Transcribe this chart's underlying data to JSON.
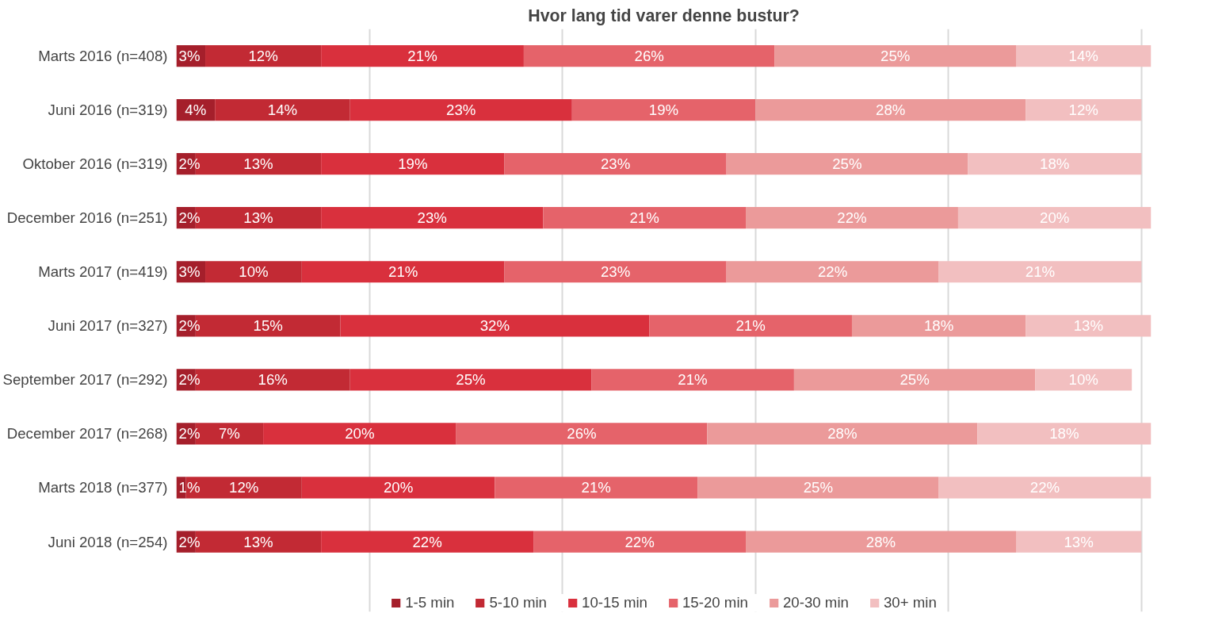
{
  "chart_data": {
    "type": "bar",
    "orientation": "horizontal",
    "stacked": true,
    "title": "Hvor lang tid varer denne bustur?",
    "categories": [
      "Marts 2016 (n=408)",
      "Juni 2016 (n=319)",
      "Oktober 2016 (n=319)",
      "December 2016 (n=251)",
      "Marts 2017 (n=419)",
      "Juni 2017 (n=327)",
      "September 2017 (n=292)",
      "December 2017 (n=268)",
      "Marts 2018 (n=377)",
      "Juni 2018 (n=254)"
    ],
    "series": [
      {
        "name": "1-5 min",
        "color": "#a51f2b",
        "values": [
          3,
          4,
          2,
          2,
          3,
          2,
          2,
          2,
          1,
          2
        ],
        "value_labels": [
          "3%",
          "4%",
          "2%",
          "2%",
          "3%",
          "2%",
          "2%",
          "2%",
          "1%",
          "2%"
        ]
      },
      {
        "name": "5-10 min",
        "color": "#c22a34",
        "values": [
          12,
          14,
          13,
          13,
          10,
          15,
          16,
          7,
          12,
          13
        ],
        "value_labels": [
          "12%",
          "14%",
          "13%",
          "13%",
          "10%",
          "15%",
          "16%",
          "7%",
          "12%",
          "13%"
        ]
      },
      {
        "name": "10-15 min",
        "color": "#d9303d",
        "values": [
          21,
          23,
          19,
          23,
          21,
          32,
          25,
          20,
          20,
          22
        ],
        "value_labels": [
          "21%",
          "23%",
          "19%",
          "23%",
          "21%",
          "32%",
          "25%",
          "20%",
          "20%",
          "22%"
        ]
      },
      {
        "name": "15-20 min",
        "color": "#e5636a",
        "values": [
          26,
          19,
          23,
          21,
          23,
          21,
          21,
          26,
          21,
          22
        ],
        "value_labels": [
          "26%",
          "19%",
          "23%",
          "21%",
          "23%",
          "21%",
          "21%",
          "26%",
          "21%",
          "22%"
        ]
      },
      {
        "name": "20-30 min",
        "color": "#eb9a9a",
        "values": [
          25,
          28,
          25,
          22,
          22,
          18,
          25,
          28,
          25,
          28
        ],
        "value_labels": [
          "25%",
          "28%",
          "25%",
          "22%",
          "22%",
          "18%",
          "25%",
          "28%",
          "25%",
          "28%"
        ]
      },
      {
        "name": "30+ min",
        "color": "#f2bfc0",
        "values": [
          14,
          12,
          18,
          20,
          21,
          13,
          10,
          18,
          22,
          13
        ],
        "value_labels": [
          "14%",
          "12%",
          "18%",
          "20%",
          "21%",
          "13%",
          "10%",
          "18%",
          "22%",
          "13%"
        ]
      }
    ],
    "tick_labels": "y",
    "grid": "x",
    "legend": "bottom"
  }
}
